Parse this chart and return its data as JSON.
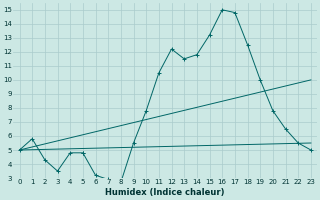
{
  "xlabel": "Humidex (Indice chaleur)",
  "bg_color": "#cce8e4",
  "grid_color": "#aacccc",
  "line_color": "#006666",
  "xlim": [
    -0.5,
    23.5
  ],
  "ylim": [
    3,
    15.5
  ],
  "xticks": [
    0,
    1,
    2,
    3,
    4,
    5,
    6,
    7,
    8,
    9,
    10,
    11,
    12,
    13,
    14,
    15,
    16,
    17,
    18,
    19,
    20,
    21,
    22,
    23
  ],
  "yticks": [
    3,
    4,
    5,
    6,
    7,
    8,
    9,
    10,
    11,
    12,
    13,
    14,
    15
  ],
  "line1_x": [
    0,
    1,
    2,
    3,
    4,
    5,
    5,
    6,
    7,
    8,
    9,
    10,
    11,
    12,
    13,
    14,
    15,
    16,
    17,
    18,
    19,
    20,
    21,
    22,
    23
  ],
  "line1_y": [
    5.0,
    5.8,
    4.3,
    3.5,
    4.8,
    4.8,
    4.8,
    3.2,
    2.9,
    2.7,
    5.5,
    7.8,
    10.5,
    12.2,
    11.5,
    11.8,
    13.2,
    15.0,
    14.8,
    12.5,
    10.0,
    7.8,
    6.5,
    5.5,
    5.0
  ],
  "line2_x": [
    0,
    23
  ],
  "line2_y": [
    5.0,
    10.0
  ],
  "line3_x": [
    0,
    23
  ],
  "line3_y": [
    5.0,
    5.5
  ],
  "marker": "+"
}
